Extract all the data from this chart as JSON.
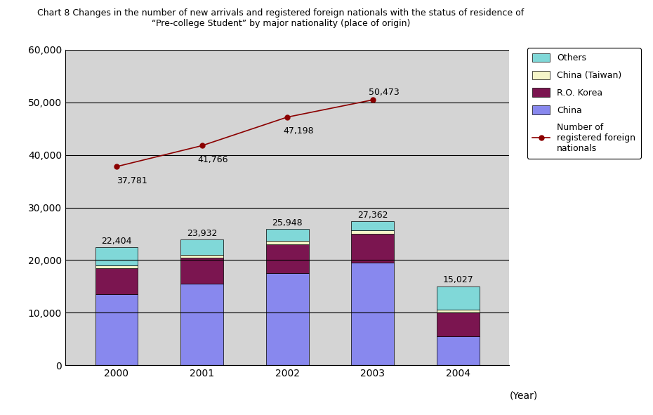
{
  "title_line1": "Chart 8 Changes in the number of new arrivals and registered foreign nationals with the status of residence of",
  "title_line2": "“Pre-college Student” by major nationality (place of origin)",
  "years": [
    2000,
    2001,
    2002,
    2003,
    2004
  ],
  "year_labels": [
    "2000",
    "2001",
    "2002",
    "2003",
    "2004"
  ],
  "china": [
    13500,
    15500,
    17500,
    19500,
    5500
  ],
  "ro_korea": [
    5000,
    5000,
    5500,
    5500,
    4500
  ],
  "taiwan": [
    500,
    500,
    600,
    600,
    500
  ],
  "totals": [
    22404,
    23932,
    25948,
    27362,
    15027
  ],
  "bar_total_labels": [
    "22,404",
    "23,932",
    "25,948",
    "27,362",
    "15,027"
  ],
  "line_values": [
    37781,
    41766,
    47198,
    50473
  ],
  "line_labels": [
    "37,781",
    "41,766",
    "47,198",
    "50,473"
  ],
  "color_china": "#8888ee",
  "color_ro_korea": "#7b1550",
  "color_china_taiwan": "#f5f5c8",
  "color_others": "#80d8d8",
  "color_line": "#8b0000",
  "color_plot_bg": "#d4d4d4",
  "ylim": [
    0,
    60000
  ],
  "yticks": [
    0,
    10000,
    20000,
    30000,
    40000,
    50000,
    60000
  ],
  "xlabel": "(Year)"
}
